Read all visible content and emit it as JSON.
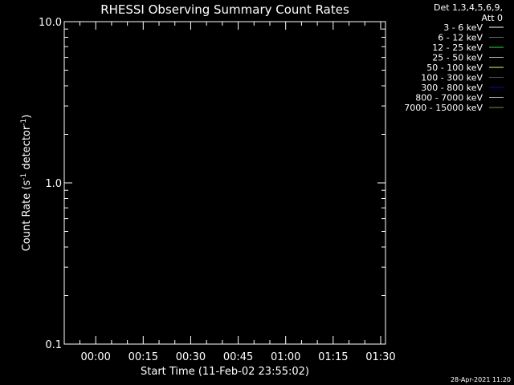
{
  "chart_data": {
    "type": "line",
    "title": "RHESSI Observing Summary Count Rates",
    "xlabel": "Start Time (11-Feb-02 23:55:02)",
    "ylabel_base": "Count Rate (s",
    "ylabel_sup1": "-1",
    "ylabel_mid": " detector",
    "ylabel_sup2": "-1",
    "ylabel_end": ")",
    "yscale": "log",
    "ylim": [
      0.1,
      10.0
    ],
    "xlim_minutes_from_start": [
      -4.97,
      96.5
    ],
    "xticks": [
      {
        "label": "00:00",
        "minutes": 4.97
      },
      {
        "label": "00:15",
        "minutes": 19.97
      },
      {
        "label": "00:30",
        "minutes": 34.97
      },
      {
        "label": "00:45",
        "minutes": 49.97
      },
      {
        "label": "01:00",
        "minutes": 64.97
      },
      {
        "label": "01:15",
        "minutes": 79.97
      },
      {
        "label": "01:30",
        "minutes": 94.97
      }
    ],
    "yticks": [
      {
        "label": "0.1",
        "value": 0.1
      },
      {
        "label": "1.0",
        "value": 1.0
      },
      {
        "label": "10.0",
        "value": 10.0
      }
    ],
    "legend_header": [
      "Det 1,3,4,5,6,9,",
      "Att 0"
    ],
    "legend_placement": "top-right",
    "series": [
      {
        "name": "3 - 6 keV",
        "color": "#ffffff",
        "values": []
      },
      {
        "name": "6 - 12 keV",
        "color": "#ff00ff",
        "values": []
      },
      {
        "name": "12 - 25 keV",
        "color": "#00ff00",
        "values": []
      },
      {
        "name": "25 - 50 keV",
        "color": "#00ffff",
        "values": []
      },
      {
        "name": "50 - 100 keV",
        "color": "#ffff00",
        "values": []
      },
      {
        "name": "100 - 300 keV",
        "color": "#ff0000",
        "values": []
      },
      {
        "name": "300 - 800 keV",
        "color": "#0000ff",
        "values": []
      },
      {
        "name": "800 - 7000 keV",
        "color": "#ff8c00",
        "values": []
      },
      {
        "name": "7000 - 15000 keV",
        "color": "#9b8a00",
        "values": []
      }
    ],
    "footer_timestamp": "28-Apr-2021 11:20"
  }
}
